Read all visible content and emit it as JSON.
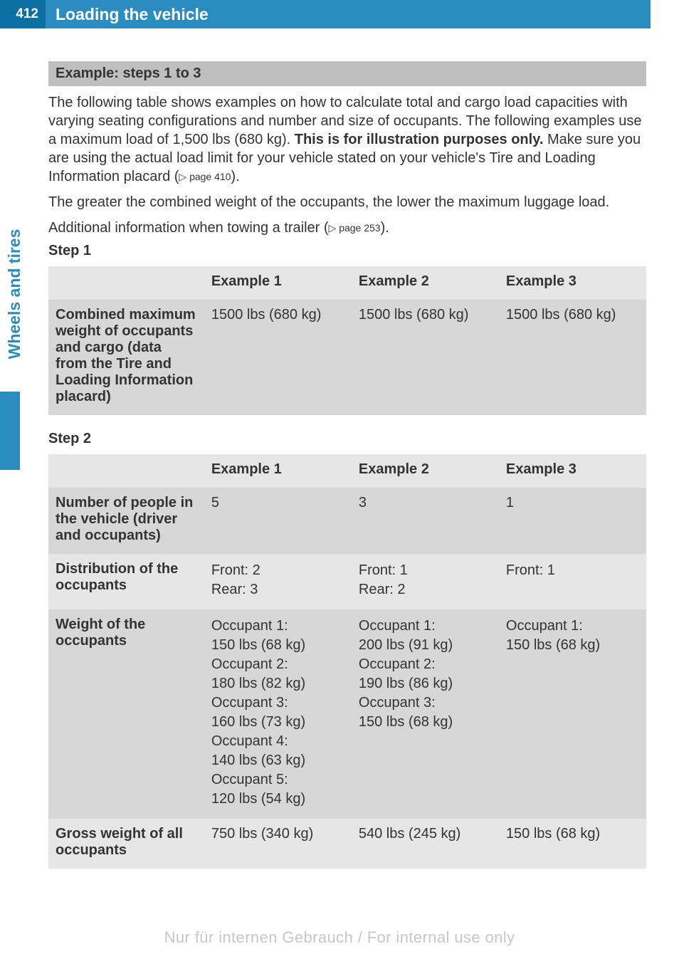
{
  "header": {
    "page_number": "412",
    "title": "Loading the vehicle"
  },
  "side_tab": "Wheels and tires",
  "section_heading": "Example: steps 1 to 3",
  "intro": {
    "p1_a": "The following table shows examples on how to calculate total and cargo load capacities with varying seating configurations and number and size of occupants. The following examples use a maximum load of 1,500 lbs (680 kg). ",
    "p1_bold": "This is for illustration purposes only.",
    "p1_b": " Make sure you are using the actual load limit for your vehicle stated on your vehicle's Tire and Loading Information placard (",
    "p1_ref": "▷ page 410",
    "p1_c": ").",
    "p2": "The greater the combined weight of the occupants, the lower the maximum luggage load.",
    "p3_a": "Additional information when towing a trailer (",
    "p3_ref": "▷ page 253",
    "p3_b": ")."
  },
  "tables": {
    "headers": {
      "ex1": "Example 1",
      "ex2": "Example 2",
      "ex3": "Example 3"
    },
    "step1": {
      "label": "Step 1",
      "row_label": "Combined maximum weight of occupants and cargo (data from the Tire and Loading Information placard)",
      "ex1": "1500 lbs (680 kg)",
      "ex2": "1500 lbs (680 kg)",
      "ex3": "1500 lbs (680 kg)"
    },
    "step2": {
      "label": "Step 2",
      "rows": {
        "num_people": {
          "label": "Number of people in the vehicle (driver and occupants)",
          "ex1": "5",
          "ex2": "3",
          "ex3": "1"
        },
        "distribution": {
          "label": "Distribution of the occupants",
          "ex1": "Front: 2\nRear: 3",
          "ex2": "Front: 1\nRear: 2",
          "ex3": "Front: 1"
        },
        "weight": {
          "label": "Weight of the occupants",
          "ex1": "Occupant 1:\n150 lbs (68 kg)\nOccupant 2:\n180 lbs (82 kg)\nOccupant 3:\n160 lbs (73 kg)\nOccupant 4:\n140 lbs (63 kg)\nOccupant 5:\n120 lbs (54 kg)",
          "ex2": "Occupant 1:\n200 lbs (91 kg)\nOccupant 2:\n190 lbs (86 kg)\nOccupant 3:\n150 lbs (68 kg)",
          "ex3": "Occupant 1:\n150 lbs (68 kg)"
        },
        "gross": {
          "label": "Gross weight of all occupants",
          "ex1": "750 lbs (340 kg)",
          "ex2": "540 lbs (245 kg)",
          "ex3": "150 lbs (68 kg)"
        }
      }
    }
  },
  "watermark": "Nur für internen Gebrauch / For internal use only",
  "colors": {
    "header_dark": "#0b6fa4",
    "header_light": "#2a8cc0",
    "row_light": "#e6e6e6",
    "row_dark": "#d7d7d7",
    "section_bar": "#bfbfbf",
    "text": "#333333",
    "watermark": "#c7c7c7"
  }
}
